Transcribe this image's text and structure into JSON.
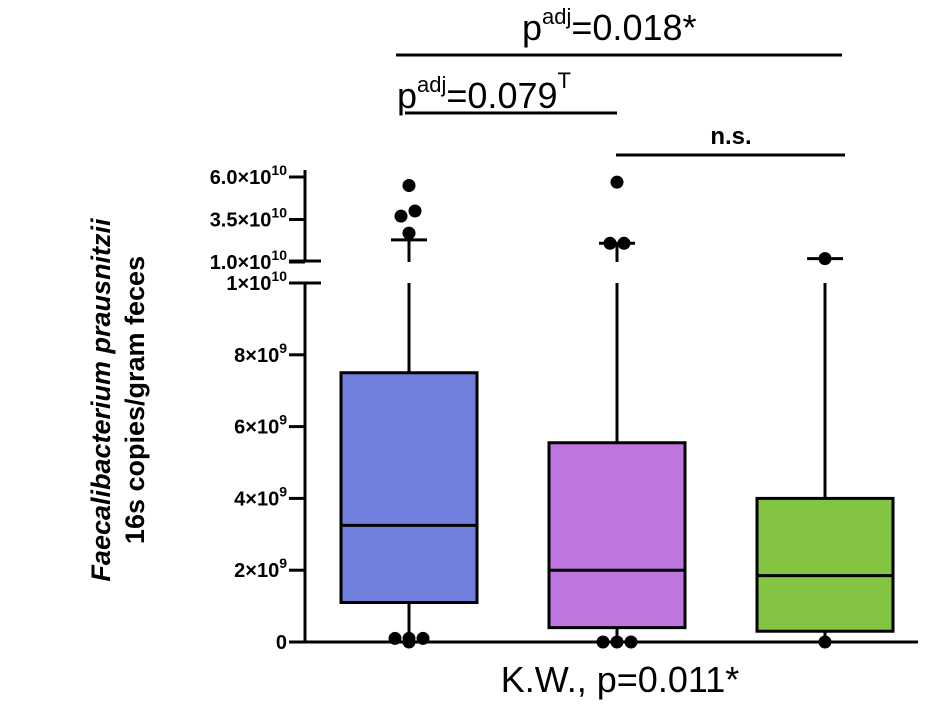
{
  "chart_data": {
    "type": "box",
    "ylabel_line1": "Faecalibacterium prausnitzii",
    "ylabel_line2": "16s copies/gram feces",
    "y_lower_range": [
      0,
      10000000000
    ],
    "y_upper_range": [
      10000000000,
      60000000000
    ],
    "y_ticks_lower": [
      {
        "value": 0,
        "base": "0",
        "exp": ""
      },
      {
        "value": 2000000000,
        "base": "2×10",
        "exp": "9"
      },
      {
        "value": 4000000000,
        "base": "4×10",
        "exp": "9"
      },
      {
        "value": 6000000000,
        "base": "6×10",
        "exp": "9"
      },
      {
        "value": 8000000000,
        "base": "8×10",
        "exp": "9"
      },
      {
        "value": 10000000000,
        "base": "1×10",
        "exp": "10"
      }
    ],
    "y_ticks_upper": [
      {
        "value": 10000000000,
        "base": "1.0×10",
        "exp": "10"
      },
      {
        "value": 35000000000,
        "base": "3.5×10",
        "exp": "10"
      },
      {
        "value": 60000000000,
        "base": "6.0×10",
        "exp": "10"
      }
    ],
    "groups": [
      {
        "color": "#6f7fdb",
        "whisker_low": 100000000,
        "q1": 1100000000,
        "median": 3250000000,
        "q3": 7500000000,
        "whisker_high": 23000000000,
        "outliers": [
          100000000,
          0,
          100000000,
          100000000,
          27000000000,
          37000000000,
          40000000000,
          55000000000
        ]
      },
      {
        "color": "#bf76de",
        "whisker_low": 0,
        "q1": 400000000,
        "median": 2000000000,
        "q3": 5550000000,
        "whisker_high": 21000000000,
        "outliers": [
          0,
          0,
          0,
          21000000000,
          21000000000,
          57000000000
        ]
      },
      {
        "color": "#84c443",
        "whisker_low": 0,
        "q1": 300000000,
        "median": 1850000000,
        "q3": 4000000000,
        "whisker_high": 12000000000,
        "outliers": [
          0,
          12000000000
        ]
      }
    ],
    "annotations": {
      "top_bracket": {
        "base": "p",
        "sup": "adj",
        "text": "=0.018*"
      },
      "mid_bracket": {
        "base": "p",
        "sup": "adj",
        "text": "=0.079",
        "suffix": "T"
      },
      "ns_bracket": {
        "text": "n.s."
      },
      "test": "K.W., p=0.011*"
    }
  }
}
